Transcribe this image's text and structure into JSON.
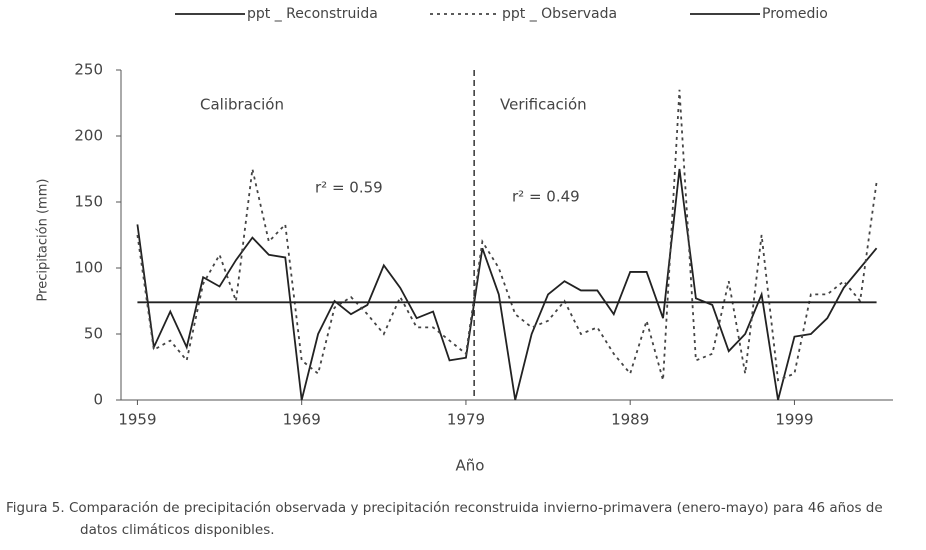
{
  "chart_data": {
    "type": "line",
    "x_label": "Año",
    "y_label": "Precipitación (mm)",
    "caption": [
      "Figura 5. Comparación de precipitación observada y precipitación reconstruida invierno-primavera (enero-mayo) para 46 años de",
      "datos climáticos disponibles."
    ],
    "annotations": [
      "Calibración",
      "Verificación",
      "r² = 0.59",
      "r² = 0.49"
    ],
    "divider_x": 1979.5,
    "x": [
      1959,
      1960,
      1961,
      1962,
      1963,
      1964,
      1965,
      1966,
      1967,
      1968,
      1969,
      1970,
      1971,
      1972,
      1973,
      1974,
      1975,
      1976,
      1977,
      1978,
      1979,
      1980,
      1981,
      1982,
      1983,
      1984,
      1985,
      1986,
      1987,
      1988,
      1989,
      1990,
      1991,
      1992,
      1993,
      1994,
      1995,
      1996,
      1997,
      1998,
      1999,
      2000,
      2001,
      2002,
      2003,
      2004
    ],
    "series": [
      {
        "name": "ppt _ Reconstruida",
        "color": "#222",
        "dash": "solid",
        "values": [
          133,
          40,
          67,
          40,
          93,
          86,
          106,
          123,
          110,
          108,
          0,
          50,
          75,
          65,
          72,
          102,
          85,
          62,
          67,
          30,
          32,
          115,
          80,
          0,
          50,
          80,
          90,
          83,
          83,
          65,
          97,
          97,
          62,
          175,
          77,
          72,
          37,
          50,
          80,
          0,
          48,
          50,
          62,
          85,
          100,
          115
        ]
      },
      {
        "name": "ppt _ Observada",
        "color": "#444",
        "dash": "dotted",
        "values": [
          125,
          38,
          45,
          30,
          88,
          110,
          75,
          175,
          120,
          133,
          30,
          20,
          70,
          78,
          65,
          50,
          78,
          55,
          55,
          45,
          35,
          120,
          100,
          65,
          55,
          60,
          75,
          50,
          55,
          35,
          20,
          60,
          15,
          235,
          30,
          35,
          90,
          20,
          125,
          15,
          20,
          80,
          80,
          90,
          75,
          165
        ]
      },
      {
        "name": "Promedio",
        "color": "#222",
        "dash": "solid",
        "values": [
          74,
          74,
          74,
          74,
          74,
          74,
          74,
          74,
          74,
          74,
          74,
          74,
          74,
          74,
          74,
          74,
          74,
          74,
          74,
          74,
          74,
          74,
          74,
          74,
          74,
          74,
          74,
          74,
          74,
          74,
          74,
          74,
          74,
          74,
          74,
          74,
          74,
          74,
          74,
          74,
          74,
          74,
          74,
          74,
          74,
          74
        ]
      }
    ],
    "xlim": [
      1958,
      2005
    ],
    "xticks": [
      1959,
      1969,
      1979,
      1989,
      1999
    ],
    "ylim": [
      0,
      250
    ],
    "yticks": [
      0,
      50,
      100,
      150,
      200,
      250
    ]
  }
}
